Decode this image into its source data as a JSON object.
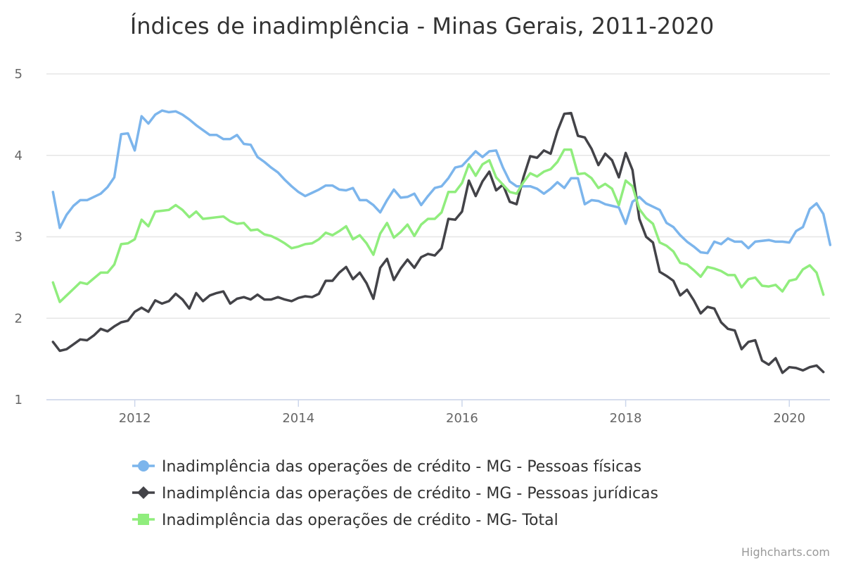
{
  "chart_data": {
    "type": "line",
    "title": "Índices de inadimplência - Minas Gerais, 2011-2020",
    "xlabel": "",
    "ylabel": "",
    "x_range": [
      "2011-01",
      "2020-06"
    ],
    "ylim": [
      1,
      5
    ],
    "y_ticks": [
      "1",
      "2",
      "3",
      "4",
      "5"
    ],
    "x_ticks": [
      "2012",
      "2014",
      "2016",
      "2018",
      "2020"
    ],
    "grid": true,
    "legend_position": "bottom",
    "series": [
      {
        "name": "Inadimplência das operações de crédito - MG - Pessoas físicas",
        "color": "#7cb5ec",
        "marker": "circle",
        "start": "2011-01",
        "values": [
          3.55,
          3.11,
          3.27,
          3.38,
          3.45,
          3.45,
          3.49,
          3.53,
          3.61,
          3.73,
          4.26,
          4.27,
          4.06,
          4.48,
          4.39,
          4.5,
          4.55,
          4.53,
          4.54,
          4.5,
          4.44,
          4.37,
          4.31,
          4.25,
          4.25,
          4.2,
          4.2,
          4.25,
          4.14,
          4.13,
          3.98,
          3.92,
          3.85,
          3.79,
          3.7,
          3.62,
          3.55,
          3.5,
          3.54,
          3.58,
          3.63,
          3.63,
          3.58,
          3.57,
          3.6,
          3.45,
          3.45,
          3.39,
          3.3,
          3.45,
          3.58,
          3.48,
          3.49,
          3.53,
          3.39,
          3.5,
          3.6,
          3.62,
          3.72,
          3.85,
          3.87,
          3.96,
          4.05,
          3.98,
          4.05,
          4.06,
          3.85,
          3.68,
          3.62,
          3.62,
          3.62,
          3.59,
          3.53,
          3.59,
          3.67,
          3.6,
          3.72,
          3.72,
          3.4,
          3.45,
          3.44,
          3.4,
          3.38,
          3.36,
          3.16,
          3.43,
          3.49,
          3.41,
          3.37,
          3.33,
          3.17,
          3.12,
          3.02,
          2.94,
          2.88,
          2.81,
          2.8,
          2.94,
          2.91,
          2.98,
          2.94,
          2.94,
          2.86,
          2.94,
          2.95,
          2.96,
          2.94,
          2.94,
          2.93,
          3.07,
          3.12,
          3.34,
          3.41,
          3.28,
          2.9
        ]
      },
      {
        "name": "Inadimplência das operações de crédito - MG - Pessoas jurídicas",
        "color": "#434348",
        "marker": "diamond",
        "start": "2011-01",
        "values": [
          1.71,
          1.6,
          1.62,
          1.68,
          1.74,
          1.73,
          1.79,
          1.87,
          1.84,
          1.9,
          1.95,
          1.97,
          2.08,
          2.13,
          2.08,
          2.22,
          2.18,
          2.21,
          2.3,
          2.23,
          2.12,
          2.31,
          2.21,
          2.28,
          2.31,
          2.33,
          2.18,
          2.24,
          2.26,
          2.23,
          2.29,
          2.23,
          2.23,
          2.26,
          2.23,
          2.21,
          2.25,
          2.27,
          2.26,
          2.3,
          2.46,
          2.46,
          2.56,
          2.63,
          2.48,
          2.56,
          2.43,
          2.24,
          2.62,
          2.73,
          2.47,
          2.61,
          2.72,
          2.62,
          2.75,
          2.79,
          2.77,
          2.86,
          3.22,
          3.21,
          3.31,
          3.69,
          3.5,
          3.68,
          3.8,
          3.57,
          3.64,
          3.43,
          3.4,
          3.73,
          3.99,
          3.97,
          4.06,
          4.02,
          4.3,
          4.51,
          4.52,
          4.24,
          4.22,
          4.08,
          3.88,
          4.02,
          3.94,
          3.73,
          4.03,
          3.82,
          3.22,
          3.0,
          2.93,
          2.57,
          2.52,
          2.46,
          2.28,
          2.35,
          2.22,
          2.06,
          2.14,
          2.12,
          1.95,
          1.87,
          1.85,
          1.62,
          1.71,
          1.73,
          1.48,
          1.43,
          1.51,
          1.33,
          1.4,
          1.39,
          1.36,
          1.4,
          1.42,
          1.34
        ]
      },
      {
        "name": "Inadimplência das operações de crédito - MG- Total",
        "color": "#90ed7d",
        "marker": "square",
        "start": "2011-01",
        "values": [
          2.44,
          2.2,
          2.28,
          2.36,
          2.44,
          2.42,
          2.49,
          2.56,
          2.56,
          2.66,
          2.91,
          2.92,
          2.97,
          3.21,
          3.13,
          3.31,
          3.32,
          3.33,
          3.39,
          3.33,
          3.24,
          3.31,
          3.22,
          3.23,
          3.24,
          3.25,
          3.19,
          3.16,
          3.17,
          3.08,
          3.09,
          3.03,
          3.01,
          2.97,
          2.92,
          2.86,
          2.88,
          2.91,
          2.92,
          2.97,
          3.05,
          3.02,
          3.07,
          3.13,
          2.97,
          3.02,
          2.92,
          2.78,
          3.04,
          3.17,
          2.99,
          3.06,
          3.15,
          3.01,
          3.15,
          3.22,
          3.22,
          3.3,
          3.55,
          3.55,
          3.66,
          3.89,
          3.75,
          3.89,
          3.94,
          3.73,
          3.64,
          3.55,
          3.53,
          3.67,
          3.78,
          3.74,
          3.8,
          3.83,
          3.92,
          4.07,
          4.07,
          3.77,
          3.78,
          3.72,
          3.6,
          3.65,
          3.59,
          3.39,
          3.69,
          3.62,
          3.34,
          3.23,
          3.16,
          2.93,
          2.89,
          2.82,
          2.68,
          2.66,
          2.59,
          2.51,
          2.63,
          2.61,
          2.58,
          2.53,
          2.53,
          2.38,
          2.48,
          2.5,
          2.4,
          2.39,
          2.41,
          2.33,
          2.46,
          2.48,
          2.6,
          2.65,
          2.56,
          2.29
        ]
      }
    ]
  },
  "credits": "Highcharts.com"
}
